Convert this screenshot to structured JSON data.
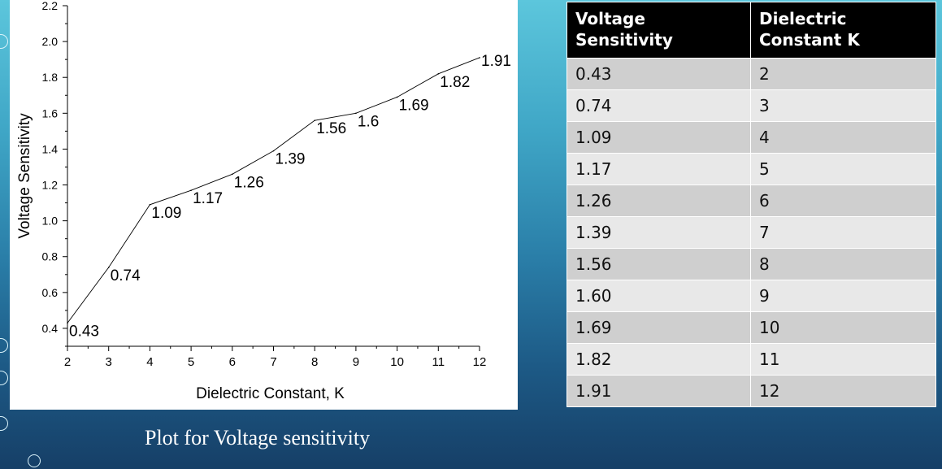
{
  "chart_data": {
    "type": "line",
    "x": [
      2,
      3,
      4,
      5,
      6,
      7,
      8,
      9,
      10,
      11,
      12
    ],
    "values": [
      0.43,
      0.74,
      1.09,
      1.17,
      1.26,
      1.39,
      1.56,
      1.6,
      1.69,
      1.82,
      1.91
    ],
    "data_labels": [
      "0.43",
      "0.74",
      "1.09",
      "1.17",
      "1.26",
      "1.39",
      "1.56",
      "1.6",
      "1.69",
      "1.82",
      "1.91"
    ],
    "xlabel": "Dielectric Constant, K",
    "ylabel": "Voltage Sensitivity",
    "xlim": [
      2,
      12
    ],
    "ylim": [
      0.3,
      2.2
    ],
    "x_ticks": [
      2,
      3,
      4,
      5,
      6,
      7,
      8,
      9,
      10,
      11,
      12
    ],
    "y_ticks": [
      "0.4",
      "0.6",
      "0.8",
      "1.0",
      "1.2",
      "1.4",
      "1.6",
      "1.8",
      "2.0",
      "2.2"
    ],
    "grid": false,
    "line_color": "#000000"
  },
  "caption": "Plot for Voltage sensitivity",
  "table": {
    "headers": [
      "Voltage Sensitivity",
      "Dielectric Constant K"
    ],
    "rows": [
      [
        "0.43",
        "2"
      ],
      [
        "0.74",
        "3"
      ],
      [
        "1.09",
        "4"
      ],
      [
        "1.17",
        "5"
      ],
      [
        "1.26",
        "6"
      ],
      [
        "1.39",
        "7"
      ],
      [
        "1.56",
        "8"
      ],
      [
        "1.60",
        "9"
      ],
      [
        "1.69",
        "10"
      ],
      [
        "1.82",
        "11"
      ],
      [
        "1.91",
        "12"
      ]
    ]
  }
}
